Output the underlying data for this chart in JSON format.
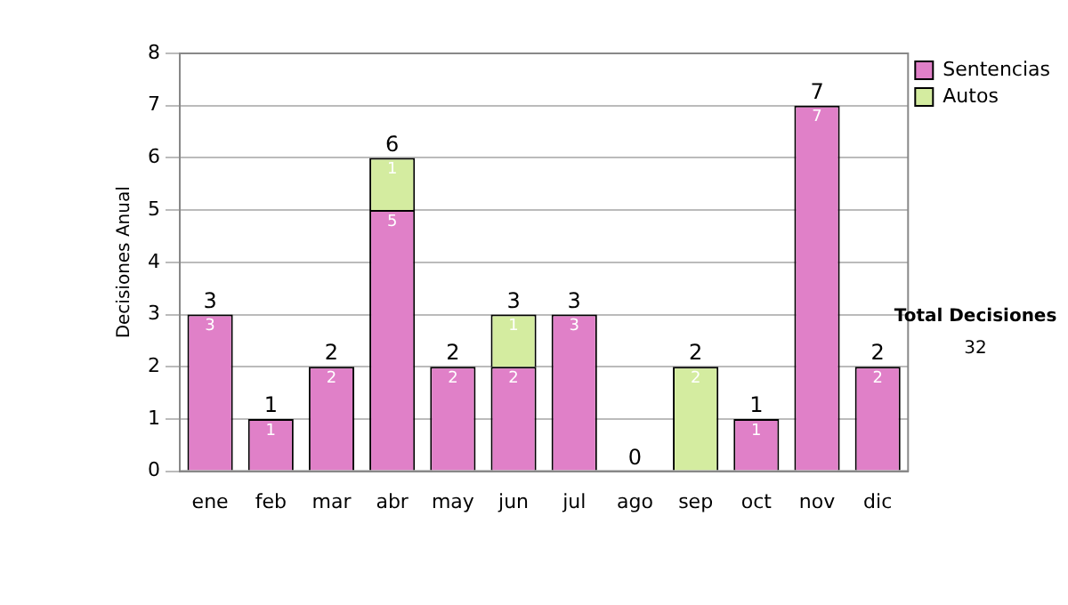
{
  "chart_data": {
    "type": "bar",
    "stacked": true,
    "ylabel": "Decisiones Anual",
    "categories": [
      "ene",
      "feb",
      "mar",
      "abr",
      "may",
      "jun",
      "jul",
      "ago",
      "sep",
      "oct",
      "nov",
      "dic"
    ],
    "series": [
      {
        "name": "Sentencias",
        "color": "#e080c8",
        "values": [
          3,
          1,
          2,
          5,
          2,
          2,
          3,
          0,
          0,
          1,
          7,
          2
        ],
        "value_labels": [
          "3",
          "1",
          "2",
          "5",
          "2",
          "2",
          "3",
          null,
          null,
          "1",
          "7",
          "2"
        ]
      },
      {
        "name": "Autos",
        "color": "#d4eca0",
        "values": [
          0,
          0,
          0,
          1,
          0,
          1,
          0,
          0,
          2,
          0,
          0,
          0
        ],
        "value_labels": [
          null,
          null,
          null,
          "1",
          null,
          "1",
          null,
          null,
          "2",
          null,
          null,
          null
        ]
      }
    ],
    "totals": [
      "3",
      "1",
      "2",
      "6",
      "2",
      "3",
      "3",
      "0",
      "2",
      "1",
      "7",
      "2"
    ],
    "ylim": [
      0,
      8
    ],
    "yticks": [
      0,
      1,
      2,
      3,
      4,
      5,
      6,
      7,
      8
    ],
    "grid": "y",
    "legend": "right",
    "annotations": [
      "Total Decisiones",
      "32"
    ]
  }
}
